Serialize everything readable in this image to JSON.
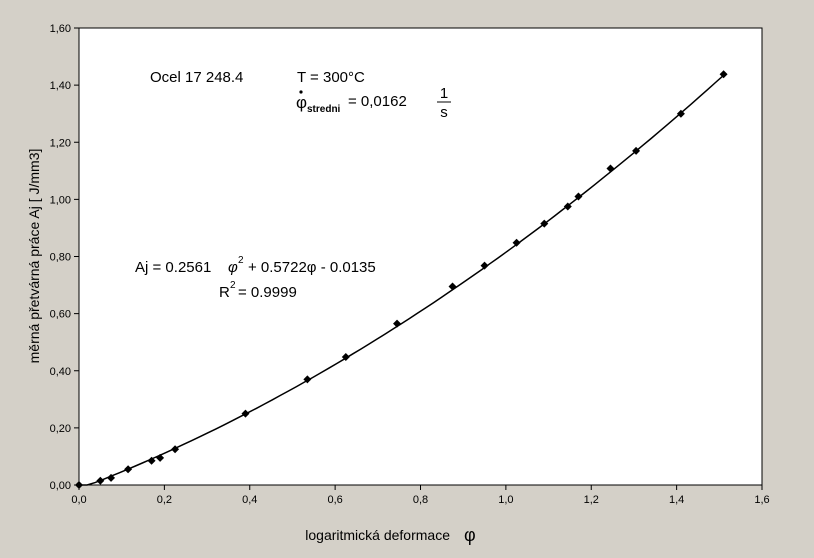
{
  "chart_data": {
    "type": "scatter",
    "xlabel": "logaritmická deformace",
    "xlabel_symbol": "φ",
    "ylabel": "měrná přetvárná práce  Aj   [ J/mm3]",
    "xlim": [
      0,
      1.6
    ],
    "ylim": [
      0,
      1.6
    ],
    "x_ticks": [
      "0,0",
      "0,2",
      "0,4",
      "0,6",
      "0,8",
      "1,0",
      "1,2",
      "1,4",
      "1,6"
    ],
    "y_ticks": [
      "0,00",
      "0,20",
      "0,40",
      "0,60",
      "0,80",
      "1,00",
      "1,20",
      "1,40",
      "1,60"
    ],
    "grid": false,
    "series": [
      {
        "x": [
          0.0,
          0.05,
          0.075,
          0.115,
          0.17,
          0.19,
          0.225,
          0.39,
          0.535,
          0.625,
          0.745,
          0.875,
          0.95,
          1.025,
          1.09,
          1.145,
          1.17,
          1.245,
          1.305,
          1.41,
          1.51
        ],
        "y": [
          0.0,
          0.015,
          0.025,
          0.055,
          0.085,
          0.095,
          0.125,
          0.25,
          0.37,
          0.448,
          0.565,
          0.695,
          0.768,
          0.848,
          0.915,
          0.975,
          1.01,
          1.108,
          1.17,
          1.3,
          1.438
        ],
        "trendline": {
          "type": "polynomial",
          "coefficients": [
            0.2561,
            0.5722,
            -0.0135
          ],
          "x_range": [
            0.0,
            1.51
          ]
        }
      }
    ],
    "annotations": {
      "material": "Ocel 17 248.4",
      "temperature": "T  = 300°C",
      "rate_symbol": "φ",
      "rate_subscript": "stredni",
      "rate_value": "= 0,0162",
      "rate_unit_num": "1",
      "rate_unit_den": "s",
      "equation_prefix": "Aj = 0.2561",
      "equation_phi": "φ",
      "equation_exp": "2",
      "equation_suffix": "+ 0.5722φ - 0.0135",
      "r2_prefix": "R",
      "r2_exp": "2",
      "r2_suffix": "= 0.9999"
    },
    "colors": {
      "background": "#d4d0c8",
      "plot_area": "#ffffff",
      "marker": "#000000",
      "line": "#000000"
    }
  }
}
